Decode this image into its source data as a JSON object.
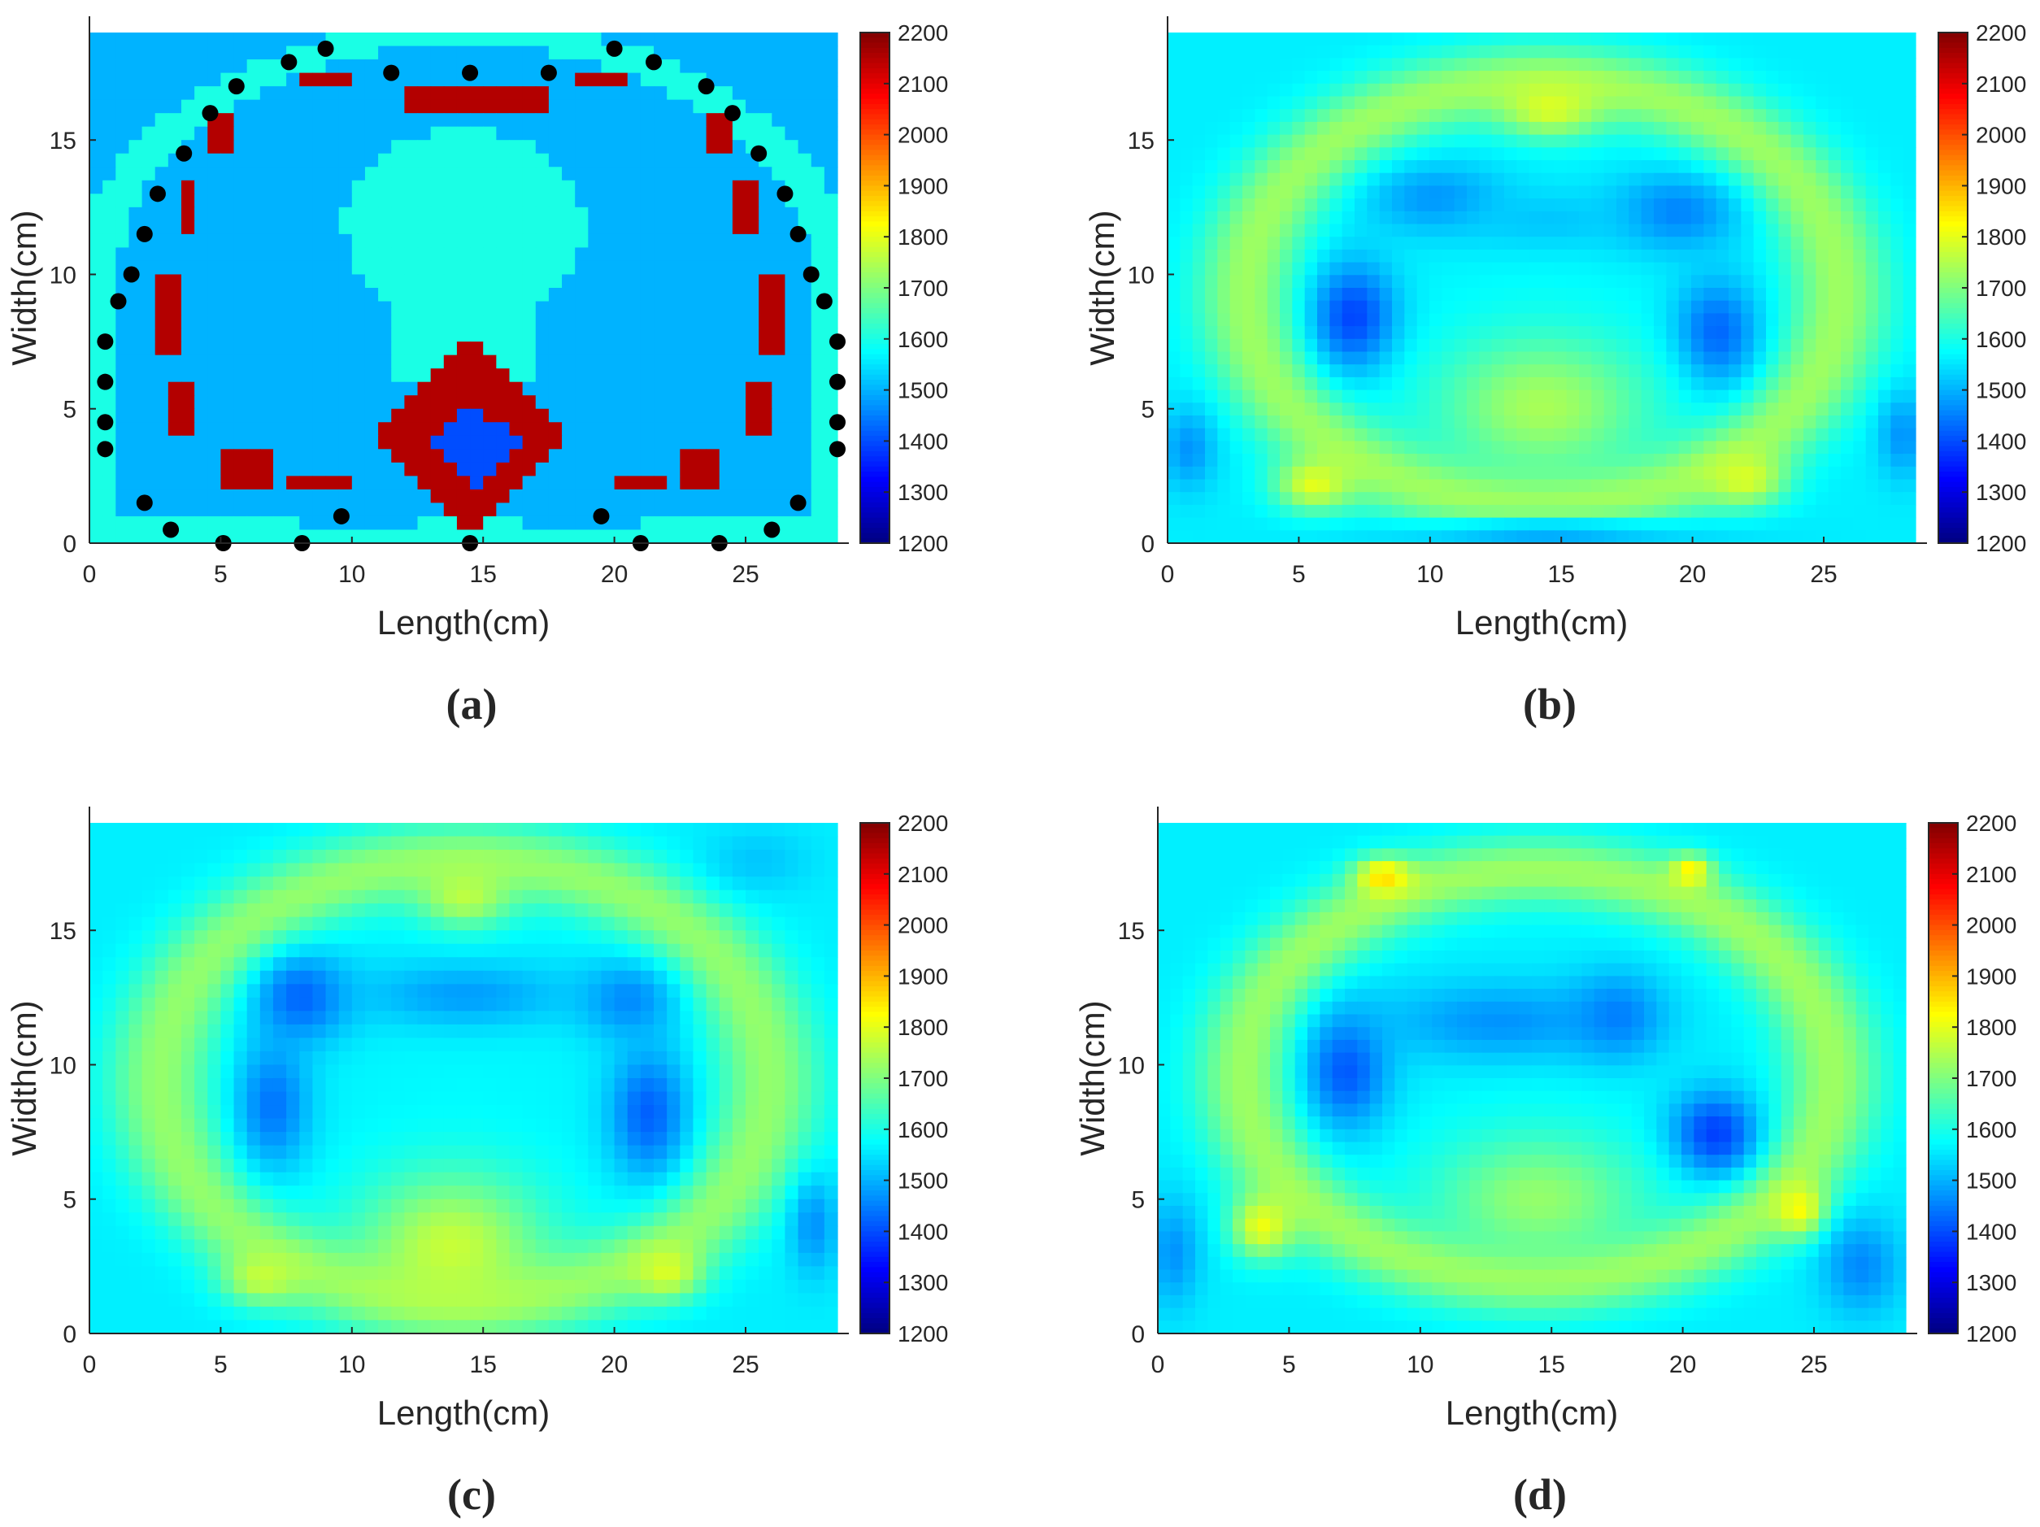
{
  "figure": {
    "panels_order": [
      "a",
      "b",
      "c",
      "d"
    ]
  },
  "chart_data": [
    {
      "id": "a",
      "type": "heatmap",
      "caption": "(a)",
      "title": "",
      "xlabel": "Length(cm)",
      "ylabel": "Width(cm)",
      "xlim": [
        0,
        28.5
      ],
      "ylim": [
        0,
        19
      ],
      "xticks": [
        "0",
        "5",
        "10",
        "15",
        "20",
        "25"
      ],
      "yticks": [
        "0",
        "5",
        "10",
        "15"
      ],
      "colorbar": {
        "min": 1200,
        "max": 2200,
        "ticks": [
          "2200",
          "2100",
          "2000",
          "1900",
          "1800",
          "1700",
          "1600",
          "1500",
          "1400",
          "1300",
          "1200"
        ]
      },
      "description": "True sound-speed phantom: background 1500, soft tissue 1600, bones 2150, spine core 1400, with electrode markers",
      "background_value": 1500,
      "regions": [
        {
          "name": "outer-tissue-ring",
          "shape": "ring",
          "value": 1600,
          "center": [
            14.3,
            9.5
          ],
          "inner_radius": [
            13.3,
            9.0
          ],
          "outer_radius": [
            14.9,
            9.9
          ],
          "y_range": [
            0,
            19
          ]
        },
        {
          "name": "central-mass",
          "shape": "ellipse",
          "value": 1600,
          "center": [
            14.3,
            11.8
          ],
          "radius": [
            4.6,
            3.6
          ]
        },
        {
          "name": "central-stalk",
          "shape": "rect",
          "value": 1600,
          "x_range": [
            11.7,
            17.0
          ],
          "y_range": [
            6.0,
            9.5
          ]
        },
        {
          "name": "top-bone-center",
          "shape": "rect",
          "value": 2150,
          "x_range": [
            11.8,
            17.3
          ],
          "y_range": [
            16.1,
            17.2
          ]
        },
        {
          "name": "top-bone-left",
          "shape": "rect",
          "value": 2150,
          "x_range": [
            8.2,
            10.2
          ],
          "y_range": [
            17.0,
            17.5
          ]
        },
        {
          "name": "top-bone-right",
          "shape": "rect",
          "value": 2150,
          "x_range": [
            18.6,
            20.6
          ],
          "y_range": [
            17.0,
            17.5
          ]
        },
        {
          "name": "left-side-bone",
          "shape": "rect",
          "value": 2150,
          "x_range": [
            2.4,
            3.3
          ],
          "y_range": [
            7.2,
            10.0
          ]
        },
        {
          "name": "right-side-bone",
          "shape": "rect",
          "value": 2150,
          "x_range": [
            25.6,
            26.5
          ],
          "y_range": [
            7.2,
            10.0
          ]
        },
        {
          "name": "left-upper-bone",
          "shape": "rect",
          "value": 2150,
          "x_range": [
            3.4,
            4.2
          ],
          "y_range": [
            11.6,
            13.3
          ]
        },
        {
          "name": "right-upper-bone",
          "shape": "rect",
          "value": 2150,
          "x_range": [
            24.7,
            25.5
          ],
          "y_range": [
            11.6,
            13.3
          ]
        },
        {
          "name": "left-lower-bone",
          "shape": "rect",
          "value": 2150,
          "x_range": [
            2.8,
            3.8
          ],
          "y_range": [
            4.2,
            5.8
          ]
        },
        {
          "name": "right-lower-bone",
          "shape": "rect",
          "value": 2150,
          "x_range": [
            25.1,
            26.2
          ],
          "y_range": [
            4.2,
            5.8
          ]
        },
        {
          "name": "left-shoulder-bone",
          "shape": "rect",
          "value": 2150,
          "x_range": [
            4.6,
            5.6
          ],
          "y_range": [
            14.6,
            16.2
          ]
        },
        {
          "name": "right-shoulder-bone",
          "shape": "rect",
          "value": 2150,
          "x_range": [
            23.3,
            24.3
          ],
          "y_range": [
            14.6,
            16.2
          ]
        },
        {
          "name": "bottom-bone-l1",
          "shape": "rect",
          "value": 2150,
          "x_range": [
            5.0,
            6.9
          ],
          "y_range": [
            1.9,
            3.3
          ]
        },
        {
          "name": "bottom-bone-l2",
          "shape": "rect",
          "value": 2150,
          "x_range": [
            7.4,
            9.8
          ],
          "y_range": [
            1.9,
            2.7
          ]
        },
        {
          "name": "bottom-bone-r1",
          "shape": "rect",
          "value": 2150,
          "x_range": [
            19.8,
            21.8
          ],
          "y_range": [
            1.9,
            2.7
          ]
        },
        {
          "name": "bottom-bone-r2",
          "shape": "rect",
          "value": 2150,
          "x_range": [
            22.3,
            24.0
          ],
          "y_range": [
            1.9,
            3.3
          ]
        },
        {
          "name": "spine",
          "shape": "diamond",
          "value": 2150,
          "center": [
            14.6,
            4.0
          ],
          "radius": [
            3.8,
            3.8
          ]
        },
        {
          "name": "spine-core",
          "shape": "diamond",
          "value": 1400,
          "center": [
            14.6,
            3.7
          ],
          "radius": [
            1.8,
            1.6
          ]
        },
        {
          "name": "bottom-strip-left",
          "shape": "rect",
          "value": 1500,
          "x_range": [
            7.8,
            12.6
          ],
          "y_range": [
            0.3,
            1.1
          ]
        },
        {
          "name": "bottom-strip-right",
          "shape": "rect",
          "value": 1500,
          "x_range": [
            16.4,
            21.2
          ],
          "y_range": [
            0.3,
            1.1
          ]
        }
      ],
      "electrodes": [
        [
          9.0,
          18.4
        ],
        [
          7.6,
          17.9
        ],
        [
          5.6,
          17.0
        ],
        [
          4.6,
          16.0
        ],
        [
          3.6,
          14.5
        ],
        [
          2.6,
          13.0
        ],
        [
          2.1,
          11.5
        ],
        [
          1.6,
          10.0
        ],
        [
          1.1,
          9.0
        ],
        [
          0.6,
          7.5
        ],
        [
          0.6,
          6.0
        ],
        [
          0.6,
          4.5
        ],
        [
          0.6,
          3.5
        ],
        [
          2.1,
          1.5
        ],
        [
          3.1,
          0.5
        ],
        [
          5.1,
          0.0
        ],
        [
          8.1,
          0.0
        ],
        [
          9.6,
          1.0
        ],
        [
          14.5,
          0.0
        ],
        [
          19.5,
          1.0
        ],
        [
          21.0,
          0.0
        ],
        [
          24.0,
          0.0
        ],
        [
          26.0,
          0.5
        ],
        [
          27.0,
          1.5
        ],
        [
          28.5,
          3.5
        ],
        [
          28.5,
          4.5
        ],
        [
          28.5,
          6.0
        ],
        [
          28.5,
          7.5
        ],
        [
          28.0,
          9.0
        ],
        [
          27.5,
          10.0
        ],
        [
          27.0,
          11.5
        ],
        [
          26.5,
          13.0
        ],
        [
          25.5,
          14.5
        ],
        [
          24.5,
          16.0
        ],
        [
          23.5,
          17.0
        ],
        [
          21.5,
          17.9
        ],
        [
          20.0,
          18.4
        ],
        [
          17.5,
          17.5
        ],
        [
          14.5,
          17.5
        ],
        [
          11.5,
          17.5
        ]
      ]
    },
    {
      "id": "b",
      "type": "heatmap",
      "caption": "(b)",
      "title": "",
      "xlabel": "Length(cm)",
      "ylabel": "Width(cm)",
      "xlim": [
        0,
        28.5
      ],
      "ylim": [
        0,
        19
      ],
      "xticks": [
        "0",
        "5",
        "10",
        "15",
        "20",
        "25"
      ],
      "yticks": [
        "0",
        "5",
        "10",
        "15"
      ],
      "colorbar": {
        "min": 1200,
        "max": 2200,
        "ticks": [
          "2200",
          "2100",
          "2000",
          "1900",
          "1800",
          "1700",
          "1600",
          "1500",
          "1400",
          "1300",
          "1200"
        ]
      },
      "description": "Smooth reconstruction",
      "background_value": 1560,
      "ring": {
        "center": [
          14.3,
          9.3
        ],
        "radius": [
          11.3,
          7.9
        ],
        "width": 1.9,
        "value": 1730
      },
      "bumps": [
        {
          "center": [
            7.1,
            8.4
          ],
          "radius": [
            1.6,
            2.0
          ],
          "value": 1390
        },
        {
          "center": [
            20.9,
            7.8
          ],
          "radius": [
            1.6,
            2.0
          ],
          "value": 1420
        },
        {
          "center": [
            10.3,
            12.8
          ],
          "radius": [
            2.6,
            1.3
          ],
          "value": 1470
        },
        {
          "center": [
            19.3,
            12.3
          ],
          "radius": [
            2.4,
            1.4
          ],
          "value": 1450
        },
        {
          "center": [
            14.5,
            12.0
          ],
          "radius": [
            3.2,
            1.1
          ],
          "value": 1520
        },
        {
          "center": [
            14.3,
            5.1
          ],
          "radius": [
            4.0,
            2.6
          ],
          "value": 1740
        },
        {
          "center": [
            5.6,
            2.2
          ],
          "radius": [
            1.5,
            1.0
          ],
          "value": 1800
        },
        {
          "center": [
            22.0,
            2.4
          ],
          "radius": [
            1.5,
            1.0
          ],
          "value": 1790
        },
        {
          "center": [
            14.6,
            16.2
          ],
          "radius": [
            2.0,
            1.1
          ],
          "value": 1790
        },
        {
          "center": [
            28.0,
            4.0
          ],
          "radius": [
            0.9,
            1.6
          ],
          "value": 1470
        },
        {
          "center": [
            0.8,
            3.5
          ],
          "radius": [
            1.0,
            1.5
          ],
          "value": 1470
        },
        {
          "center": [
            14.5,
            0.4
          ],
          "radius": [
            6.0,
            0.5
          ],
          "value": 1480
        }
      ]
    },
    {
      "id": "c",
      "type": "heatmap",
      "caption": "(c)",
      "title": "",
      "xlabel": "Length(cm)",
      "ylabel": "Width(cm)",
      "xlim": [
        0,
        28.5
      ],
      "ylim": [
        0,
        19
      ],
      "xticks": [
        "0",
        "5",
        "10",
        "15",
        "20",
        "25"
      ],
      "yticks": [
        "0",
        "5",
        "10",
        "15"
      ],
      "colorbar": {
        "min": 1200,
        "max": 2200,
        "ticks": [
          "2200",
          "2100",
          "2000",
          "1900",
          "1800",
          "1700",
          "1600",
          "1500",
          "1400",
          "1300",
          "1200"
        ]
      },
      "description": "Pixelated reconstruction",
      "pixelated": true,
      "background_value": 1560,
      "ring": {
        "center": [
          14.3,
          9.4
        ],
        "radius": [
          11.6,
          8.2
        ],
        "width": 2.0,
        "value": 1720
      },
      "bumps": [
        {
          "center": [
            8.1,
            12.5
          ],
          "radius": [
            1.8,
            1.6
          ],
          "value": 1420
        },
        {
          "center": [
            7.0,
            8.5
          ],
          "radius": [
            1.4,
            2.4
          ],
          "value": 1440
        },
        {
          "center": [
            21.3,
            8.2
          ],
          "radius": [
            1.5,
            2.4
          ],
          "value": 1420
        },
        {
          "center": [
            20.5,
            12.4
          ],
          "radius": [
            1.8,
            1.4
          ],
          "value": 1460
        },
        {
          "center": [
            14.3,
            12.6
          ],
          "radius": [
            4.0,
            1.2
          ],
          "value": 1480
        },
        {
          "center": [
            13.8,
            3.2
          ],
          "radius": [
            3.6,
            2.8
          ],
          "value": 1770
        },
        {
          "center": [
            6.6,
            2.1
          ],
          "radius": [
            1.5,
            1.0
          ],
          "value": 1770
        },
        {
          "center": [
            22.0,
            2.3
          ],
          "radius": [
            1.3,
            1.0
          ],
          "value": 1790
        },
        {
          "center": [
            14.3,
            16.3
          ],
          "radius": [
            1.8,
            1.2
          ],
          "value": 1760
        },
        {
          "center": [
            27.6,
            4.0
          ],
          "radius": [
            0.9,
            1.8
          ],
          "value": 1470
        },
        {
          "center": [
            25.5,
            17.6
          ],
          "radius": [
            2.0,
            1.2
          ],
          "value": 1520
        }
      ]
    },
    {
      "id": "d",
      "type": "heatmap",
      "caption": "(d)",
      "title": "",
      "xlabel": "Length(cm)",
      "ylabel": "Width(cm)",
      "xlim": [
        0,
        28.5
      ],
      "ylim": [
        0,
        19
      ],
      "xticks": [
        "0",
        "5",
        "10",
        "15",
        "20",
        "25"
      ],
      "yticks": [
        "0",
        "5",
        "10",
        "15"
      ],
      "colorbar": {
        "min": 1200,
        "max": 2200,
        "ticks": [
          "2200",
          "2100",
          "2000",
          "1900",
          "1800",
          "1700",
          "1600",
          "1500",
          "1400",
          "1300",
          "1200"
        ]
      },
      "description": "Smooth reconstruction with hot spots",
      "background_value": 1560,
      "ring": {
        "center": [
          14.5,
          9.6
        ],
        "radius": [
          11.2,
          7.6
        ],
        "width": 1.8,
        "value": 1730
      },
      "bumps": [
        {
          "center": [
            7.2,
            9.8
          ],
          "radius": [
            1.6,
            2.2
          ],
          "value": 1410
        },
        {
          "center": [
            21.2,
            7.4
          ],
          "radius": [
            1.7,
            1.6
          ],
          "value": 1380
        },
        {
          "center": [
            13.0,
            11.6
          ],
          "radius": [
            4.5,
            1.5
          ],
          "value": 1470
        },
        {
          "center": [
            17.5,
            11.8
          ],
          "radius": [
            1.8,
            1.6
          ],
          "value": 1450
        },
        {
          "center": [
            14.5,
            5.0
          ],
          "radius": [
            4.0,
            2.4
          ],
          "value": 1720
        },
        {
          "center": [
            8.6,
            17.0
          ],
          "radius": [
            1.1,
            0.7
          ],
          "value": 1860
        },
        {
          "center": [
            20.3,
            17.2
          ],
          "radius": [
            0.8,
            0.6
          ],
          "value": 1840
        },
        {
          "center": [
            4.0,
            4.0
          ],
          "radius": [
            1.2,
            1.2
          ],
          "value": 1810
        },
        {
          "center": [
            24.5,
            4.6
          ],
          "radius": [
            1.0,
            1.0
          ],
          "value": 1830
        },
        {
          "center": [
            26.8,
            2.5
          ],
          "radius": [
            1.5,
            1.8
          ],
          "value": 1460
        },
        {
          "center": [
            0.6,
            3.0
          ],
          "radius": [
            1.0,
            2.0
          ],
          "value": 1470
        }
      ]
    }
  ]
}
